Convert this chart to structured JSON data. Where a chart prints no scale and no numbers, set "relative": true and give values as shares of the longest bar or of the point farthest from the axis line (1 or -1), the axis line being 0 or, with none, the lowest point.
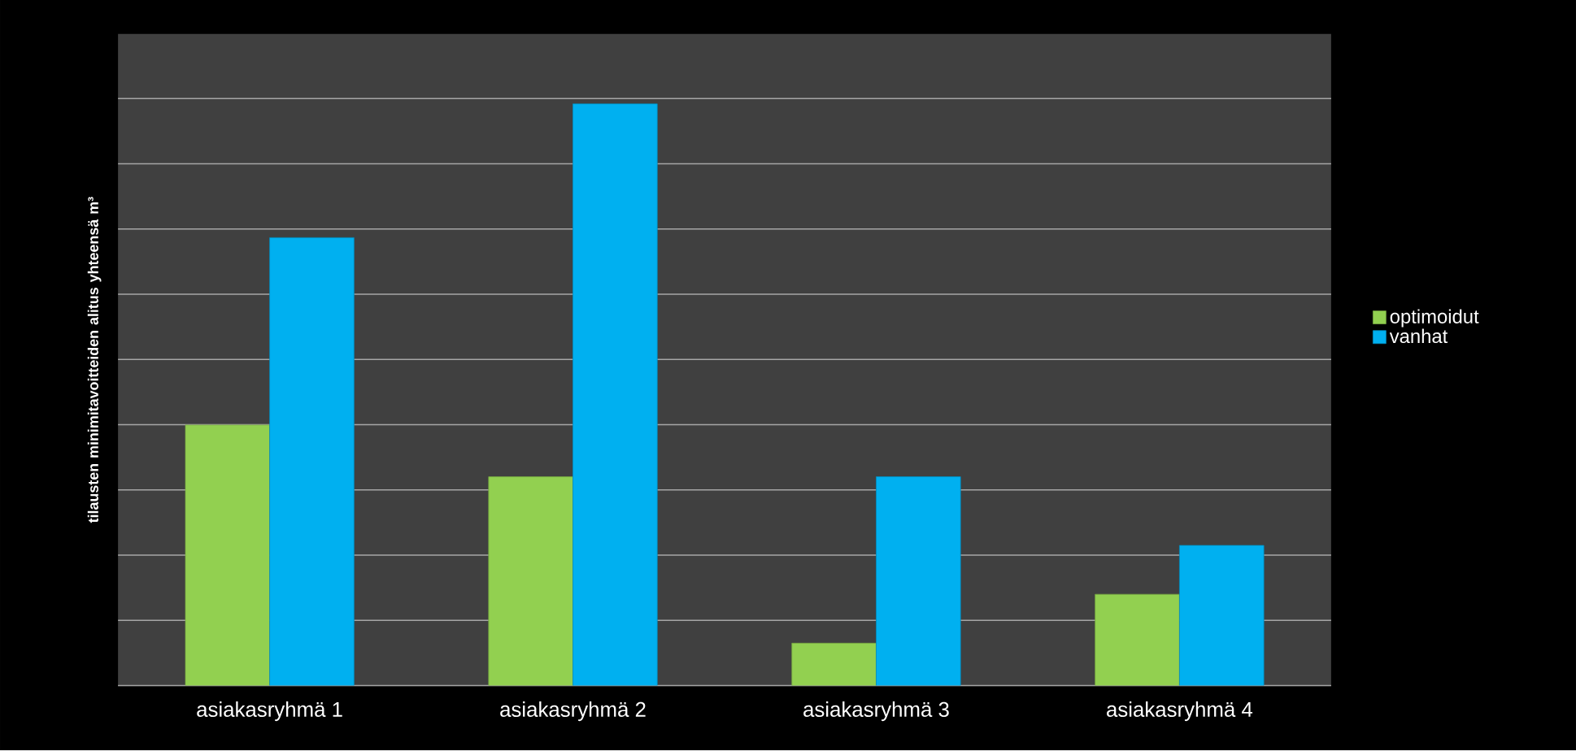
{
  "chart_data": {
    "type": "bar",
    "relative": true,
    "ylabel": "tilausten minimitavoitteiden alitus yhteensä m³",
    "categories": [
      "asiakasryhmä 1",
      "asiakasryhmä 2",
      "asiakasryhmä 3",
      "asiakasryhmä 4"
    ],
    "series": [
      {
        "name": "optimoidut",
        "color": "#92d050",
        "values": [
          0.448,
          0.359,
          0.073,
          0.157
        ]
      },
      {
        "name": "vanhat",
        "color": "#00b0f0",
        "values": [
          0.77,
          1,
          0.359,
          0.241
        ]
      }
    ],
    "grid": "y",
    "legend": "right"
  }
}
